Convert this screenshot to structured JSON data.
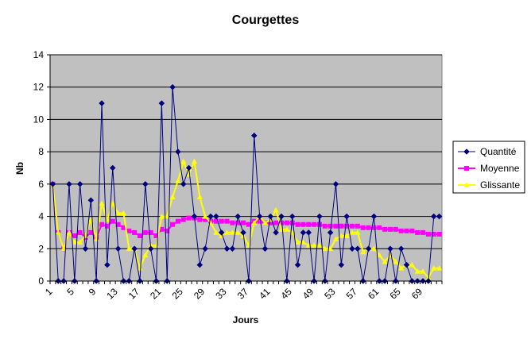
{
  "chart_data": {
    "type": "line",
    "title": "Courgettes",
    "xlabel": "Jours",
    "ylabel": "Nb",
    "ylim": [
      0,
      14
    ],
    "yticks": [
      0,
      2,
      4,
      6,
      8,
      10,
      12,
      14
    ],
    "xlim": [
      1,
      72
    ],
    "xticks": [
      1,
      5,
      9,
      13,
      17,
      21,
      25,
      29,
      33,
      37,
      41,
      45,
      49,
      53,
      57,
      61,
      65,
      69
    ],
    "grid": "horizontal major lines",
    "plot_background": "#C0C0C0",
    "legend_position": "right",
    "series": [
      {
        "name": "Quantité",
        "color": "#000080",
        "marker": "diamond",
        "x": [
          1,
          2,
          3,
          4,
          5,
          6,
          7,
          8,
          9,
          10,
          11,
          12,
          13,
          14,
          15,
          16,
          17,
          18,
          19,
          20,
          21,
          22,
          23,
          24,
          25,
          26,
          27,
          28,
          29,
          30,
          31,
          32,
          33,
          34,
          35,
          36,
          37,
          38,
          39,
          40,
          41,
          42,
          43,
          44,
          45,
          46,
          47,
          48,
          49,
          50,
          51,
          52,
          53,
          54,
          55,
          56,
          57,
          58,
          59,
          60,
          61,
          62,
          63,
          64,
          65,
          66,
          67,
          68,
          69,
          70,
          71,
          72
        ],
        "values": [
          6,
          0,
          0,
          6,
          0,
          6,
          2,
          5,
          0,
          11,
          1,
          7,
          2,
          0,
          0,
          2,
          0,
          6,
          2,
          0,
          11,
          0,
          12,
          8,
          6,
          7,
          4,
          1,
          2,
          4,
          4,
          3,
          2,
          2,
          4,
          3,
          0,
          9,
          4,
          2,
          4,
          3,
          4,
          0,
          4,
          1,
          3,
          3,
          0,
          4,
          0,
          3,
          6,
          1,
          4,
          2,
          2,
          0,
          2,
          4,
          0,
          0,
          2,
          0,
          2,
          1,
          0,
          0,
          0,
          0,
          4,
          4
        ]
      },
      {
        "name": "Moyenne",
        "color": "#FF00FF",
        "marker": "square",
        "x": [
          1,
          2,
          3,
          4,
          5,
          6,
          7,
          8,
          9,
          10,
          11,
          12,
          13,
          14,
          15,
          16,
          17,
          18,
          19,
          20,
          21,
          22,
          23,
          24,
          25,
          26,
          27,
          28,
          29,
          30,
          31,
          32,
          33,
          34,
          35,
          36,
          37,
          38,
          39,
          40,
          41,
          42,
          43,
          44,
          45,
          46,
          47,
          48,
          49,
          50,
          51,
          52,
          53,
          54,
          55,
          56,
          57,
          58,
          59,
          60,
          61,
          62,
          63,
          64,
          65,
          66,
          67,
          68,
          69,
          70,
          71,
          72
        ],
        "values": [
          6,
          3,
          2,
          3,
          2.8,
          3,
          2.7,
          3,
          2.7,
          3.5,
          3.4,
          3.7,
          3.5,
          3.3,
          3.1,
          3,
          2.8,
          3,
          3,
          2.8,
          3.2,
          3.1,
          3.5,
          3.7,
          3.8,
          3.9,
          3.9,
          3.8,
          3.8,
          3.7,
          3.7,
          3.7,
          3.7,
          3.6,
          3.6,
          3.6,
          3.5,
          3.7,
          3.7,
          3.6,
          3.6,
          3.6,
          3.6,
          3.6,
          3.6,
          3.5,
          3.5,
          3.5,
          3.5,
          3.5,
          3.4,
          3.4,
          3.4,
          3.4,
          3.4,
          3.4,
          3.4,
          3.3,
          3.3,
          3.3,
          3.3,
          3.2,
          3.2,
          3.2,
          3.1,
          3.1,
          3.1,
          3,
          3,
          2.9,
          2.9,
          2.9
        ]
      },
      {
        "name": "Glissante",
        "color": "#FFFF00",
        "marker": "triangle",
        "x": [
          1,
          2,
          3,
          4,
          5,
          6,
          7,
          8,
          9,
          10,
          11,
          12,
          13,
          14,
          15,
          16,
          17,
          18,
          19,
          20,
          21,
          22,
          23,
          24,
          25,
          26,
          27,
          28,
          29,
          30,
          31,
          32,
          33,
          34,
          35,
          36,
          37,
          38,
          39,
          40,
          41,
          42,
          43,
          44,
          45,
          46,
          47,
          48,
          49,
          50,
          51,
          52,
          53,
          54,
          55,
          56,
          57,
          58,
          59,
          60,
          61,
          62,
          63,
          64,
          65,
          66,
          67,
          68,
          69,
          70,
          71,
          72
        ],
        "values": [
          6,
          3,
          2,
          3,
          2.4,
          2.4,
          2.8,
          3.8,
          2.6,
          4.8,
          3.8,
          4.8,
          4.2,
          4.2,
          2,
          2,
          0.8,
          1.6,
          2.2,
          2.2,
          4,
          4,
          5.2,
          6.2,
          7.4,
          6.6,
          7.4,
          5.2,
          4,
          3.6,
          3,
          2.8,
          3,
          3,
          3,
          2.8,
          2.2,
          3.6,
          4,
          3.6,
          3.8,
          4.4,
          3.2,
          3.2,
          3,
          2.4,
          2.4,
          2.2,
          2.2,
          2.2,
          2,
          2,
          2.6,
          2.8,
          2.8,
          3,
          3,
          1.8,
          2,
          2,
          1.6,
          1.2,
          1.6,
          1.2,
          0.8,
          1,
          1,
          0.6,
          0.6,
          0.2,
          0.8,
          0.8
        ]
      }
    ]
  }
}
